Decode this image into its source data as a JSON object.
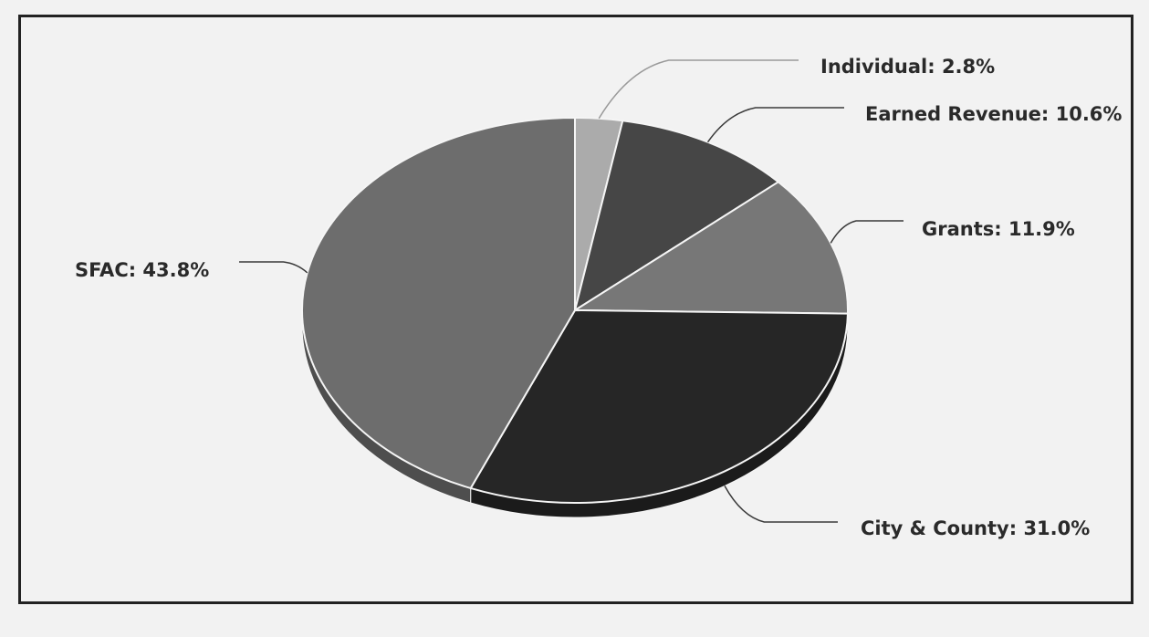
{
  "chart_data": {
    "type": "pie",
    "title": "",
    "style": "3d",
    "legend": "none",
    "slices": [
      {
        "name": "Individual",
        "value": 2.8,
        "label": "Individual: 2.8%",
        "color": "#ababab"
      },
      {
        "name": "Earned Revenue",
        "value": 10.6,
        "label": "Earned Revenue: 10.6%",
        "color": "#464646"
      },
      {
        "name": "Grants",
        "value": 11.9,
        "label": "Grants: 11.9%",
        "color": "#777777"
      },
      {
        "name": "City & County",
        "value": 31.0,
        "label": "City & County: 31.0%",
        "color": "#262626"
      },
      {
        "name": "SFAC",
        "value": 43.8,
        "label": "SFAC: 43.8%",
        "color": "#6d6d6d"
      }
    ]
  }
}
